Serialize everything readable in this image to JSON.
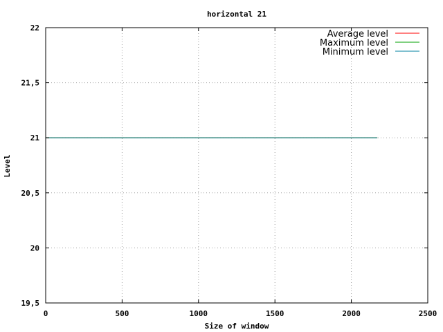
{
  "chart_data": {
    "type": "line",
    "title": "horizontal 21",
    "xlabel": "Size of window",
    "ylabel": "Level",
    "xlim": [
      0,
      2500
    ],
    "ylim": [
      19.5,
      22
    ],
    "x_ticks": [
      0,
      500,
      1000,
      1500,
      2000,
      2500
    ],
    "y_ticks": [
      19.5,
      20,
      20.5,
      21,
      21.5,
      22
    ],
    "x_tick_labels": [
      "0",
      "500",
      "1000",
      "1500",
      "2000",
      "2500"
    ],
    "y_tick_labels": [
      "19,5",
      "20",
      "20,5",
      "21",
      "21,5",
      "22"
    ],
    "grid": true,
    "legend_position": "top-right",
    "series": [
      {
        "name": "Average level",
        "color": "#ff0000",
        "x": [
          0,
          2170
        ],
        "y": [
          21,
          21
        ]
      },
      {
        "name": "Maximum level",
        "color": "#00a000",
        "x": [
          0,
          2170
        ],
        "y": [
          21,
          21
        ]
      },
      {
        "name": "Minimum level",
        "color": "#0080a0",
        "x": [
          0,
          2170
        ],
        "y": [
          21,
          21
        ]
      }
    ]
  }
}
